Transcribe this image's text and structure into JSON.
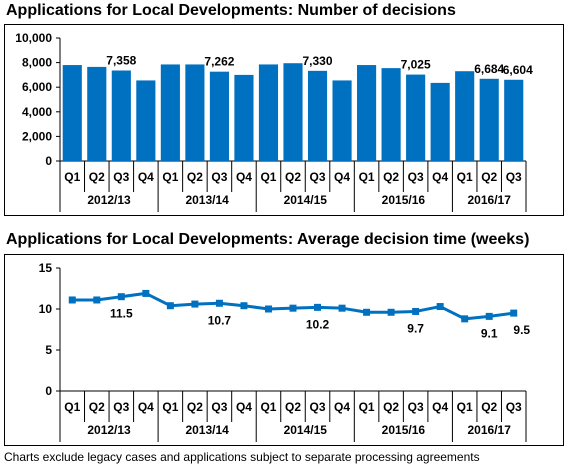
{
  "chart_data": [
    {
      "type": "bar",
      "title": "Applications for Local Developments: Number of decisions",
      "quarters": [
        "Q1",
        "Q2",
        "Q3",
        "Q4",
        "Q1",
        "Q2",
        "Q3",
        "Q4",
        "Q1",
        "Q2",
        "Q3",
        "Q4",
        "Q1",
        "Q2",
        "Q3",
        "Q4",
        "Q1",
        "Q2",
        "Q3"
      ],
      "years": [
        "2012/13",
        "2013/14",
        "2014/15",
        "2015/16",
        "2016/17"
      ],
      "values": [
        7800,
        7650,
        7358,
        6550,
        7850,
        7850,
        7262,
        7000,
        7850,
        7950,
        7330,
        6550,
        7800,
        7550,
        7025,
        6350,
        7300,
        6684,
        6604
      ],
      "data_labels": [
        null,
        null,
        "7,358",
        null,
        null,
        null,
        "7,262",
        null,
        null,
        null,
        "7,330",
        null,
        null,
        null,
        "7,025",
        null,
        null,
        "6,684",
        "6,604"
      ],
      "yticks": [
        "0",
        "2,000",
        "4,000",
        "6,000",
        "8,000",
        "10,000"
      ],
      "ylim": [
        0,
        10000
      ],
      "color": "#0070C0"
    },
    {
      "type": "line",
      "title": "Applications for Local Developments: Average decision time (weeks)",
      "quarters": [
        "Q1",
        "Q2",
        "Q3",
        "Q4",
        "Q1",
        "Q2",
        "Q3",
        "Q4",
        "Q1",
        "Q2",
        "Q3",
        "Q4",
        "Q1",
        "Q2",
        "Q3",
        "Q4",
        "Q1",
        "Q2",
        "Q3"
      ],
      "years": [
        "2012/13",
        "2013/14",
        "2014/15",
        "2015/16",
        "2016/17"
      ],
      "values": [
        11.1,
        11.1,
        11.5,
        11.9,
        10.4,
        10.6,
        10.7,
        10.4,
        10.0,
        10.1,
        10.2,
        10.1,
        9.6,
        9.6,
        9.7,
        10.3,
        8.8,
        9.1,
        9.5
      ],
      "data_labels": [
        null,
        null,
        "11.5",
        null,
        null,
        null,
        "10.7",
        null,
        null,
        null,
        "10.2",
        null,
        null,
        null,
        "9.7",
        null,
        null,
        "9.1",
        "9.5"
      ],
      "yticks": [
        "0",
        "5",
        "10",
        "15"
      ],
      "ylim": [
        0,
        15
      ],
      "color": "#0070C0"
    }
  ],
  "footnote": "Charts exclude legacy cases and applications subject to separate processing agreements"
}
